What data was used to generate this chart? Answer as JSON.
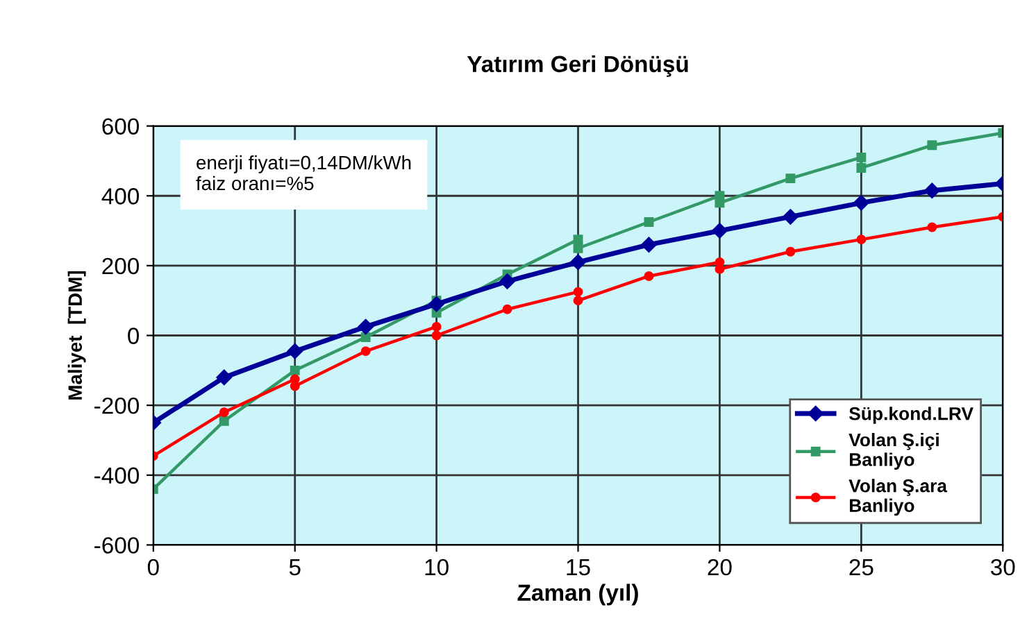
{
  "chart_data": {
    "type": "line",
    "title": "Yatırım Geri Dönüşü",
    "xlabel": "Zaman (yıl)",
    "ylabel": "Maliyet  [TDM]",
    "annotations": [
      "enerji fiyatı=0,14DM/kWh\nfaiz oranı=%5"
    ],
    "xlim": [
      0,
      30
    ],
    "xticks": [
      0,
      5,
      10,
      15,
      20,
      25,
      30
    ],
    "ylim": [
      -600,
      600
    ],
    "yticks": [
      -600,
      -400,
      -200,
      0,
      200,
      400,
      600
    ],
    "grid": true,
    "legend": "bottom right",
    "series": [
      {
        "name": "Süp.kond.LRV",
        "color": "#000099",
        "marker": "diamond",
        "x": [
          0,
          2.5,
          5,
          7.5,
          10,
          12.5,
          15,
          17.5,
          20,
          22.5,
          25,
          27.5,
          30
        ],
        "values": [
          -250,
          -120,
          -45,
          25,
          90,
          155,
          210,
          260,
          300,
          340,
          380,
          415,
          435
        ]
      },
      {
        "name": "Volan Ş.içi\nBanliyo",
        "color": "#339966",
        "marker": "square",
        "x": [
          0,
          2.5,
          5,
          7.5,
          10,
          10,
          12.5,
          15,
          15,
          17.5,
          20,
          20,
          22.5,
          25,
          25,
          27.5,
          30
        ],
        "values": [
          -440,
          -245,
          -100,
          -5,
          100,
          65,
          175,
          275,
          250,
          325,
          400,
          380,
          450,
          510,
          480,
          545,
          580
        ]
      },
      {
        "name": "Volan Ş.ara\nBanliyo",
        "color": "#ff0000",
        "marker": "circle",
        "x": [
          0,
          2.5,
          5,
          5,
          7.5,
          10,
          10,
          12.5,
          15,
          15,
          17.5,
          20,
          20,
          22.5,
          25,
          27.5,
          30
        ],
        "values": [
          -345,
          -220,
          -125,
          -145,
          -45,
          25,
          0,
          75,
          125,
          100,
          170,
          210,
          190,
          240,
          275,
          310,
          340
        ]
      }
    ]
  }
}
